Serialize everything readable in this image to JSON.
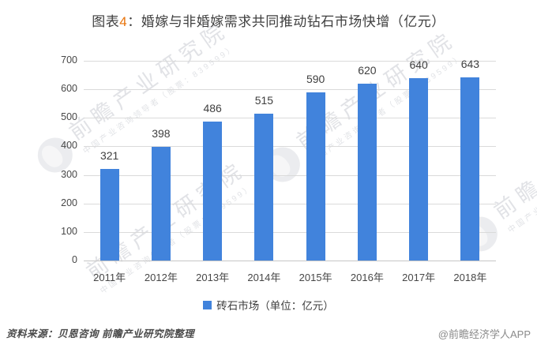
{
  "title": {
    "prefix": "图表",
    "num": "4",
    "rest": "：婚嫁与非婚嫁需求共同推动钻石市场快增（亿元）"
  },
  "chart_data": {
    "type": "bar",
    "title": "图表4：婚嫁与非婚嫁需求共同推动钻石市场快增（亿元）",
    "categories": [
      "2011年",
      "2012年",
      "2013年",
      "2014年",
      "2015年",
      "2016年",
      "2017年",
      "2018年"
    ],
    "values": [
      321,
      398,
      486,
      515,
      590,
      620,
      640,
      643
    ],
    "series_name": "砖石市场（单位：亿元）",
    "ylim": [
      0,
      700
    ],
    "yticks": [
      0,
      100,
      200,
      300,
      400,
      500,
      600,
      700
    ],
    "grid": true,
    "data_labels": true,
    "legend_position": "bottom",
    "xlabel": "",
    "ylabel": ""
  },
  "legend": {
    "label": "砖石市场（单位：亿元）"
  },
  "footer": {
    "source": "资料来源：贝恩咨询 前瞻产业研究院整理",
    "credit": "@前瞻经济学人APP"
  },
  "watermark": {
    "text": "前瞻产业研究院",
    "subtext": "中国产业咨询领导者（股票：839599）"
  },
  "colors": {
    "bar": "#4183DC",
    "title_num": "#E8740C",
    "text": "#404040",
    "grid": "#DADADA",
    "muted": "#8A8A8A"
  }
}
